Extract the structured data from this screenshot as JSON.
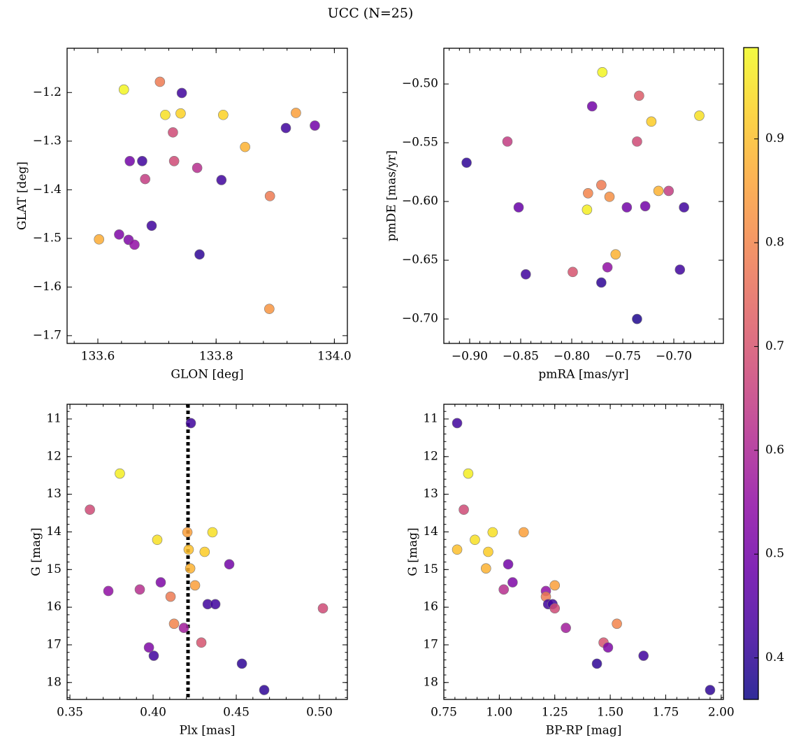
{
  "title": "UCC (N=25)",
  "colorbar": {
    "clim": [
      0.36,
      0.988
    ],
    "colormap": "plasma",
    "ticks": [
      0.4,
      0.5,
      0.6,
      0.7,
      0.8,
      0.9
    ]
  },
  "chart_data": [
    {
      "type": "scatter",
      "xlabel": "GLON [deg]",
      "ylabel": "GLAT [deg]",
      "xlim": [
        133.548,
        134.022
      ],
      "ylim": [
        -1.716,
        -1.109
      ],
      "xticks": [
        133.6,
        133.8,
        {
          "value": 134.0,
          "label": "134.0"
        }
      ],
      "yticks": [
        {
          "value": -1.2,
          "label": "−1.2"
        },
        {
          "value": -1.3,
          "label": "−1.3"
        },
        {
          "value": -1.4,
          "label": "−1.4"
        },
        {
          "value": -1.5,
          "label": "−1.5"
        },
        {
          "value": -1.6,
          "label": "−1.6"
        },
        {
          "value": -1.7,
          "label": "−1.7"
        }
      ],
      "x": [
        133.644,
        133.705,
        133.742,
        133.714,
        133.74,
        133.812,
        133.935,
        133.967,
        133.918,
        133.727,
        133.849,
        133.654,
        133.675,
        133.729,
        133.768,
        133.68,
        133.809,
        133.891,
        133.691,
        133.602,
        133.636,
        133.652,
        133.662,
        133.772,
        133.89
      ],
      "y": [
        -1.194,
        -1.178,
        -1.201,
        -1.246,
        -1.243,
        -1.246,
        -1.242,
        -1.268,
        -1.273,
        -1.282,
        -1.312,
        -1.341,
        -1.341,
        -1.341,
        -1.355,
        -1.378,
        -1.38,
        -1.413,
        -1.474,
        -1.502,
        -1.492,
        -1.503,
        -1.513,
        -1.533,
        -1.645
      ],
      "c": [
        0.98,
        0.78,
        0.42,
        0.95,
        0.93,
        0.93,
        0.85,
        0.5,
        0.42,
        0.68,
        0.88,
        0.5,
        0.42,
        0.68,
        0.62,
        0.65,
        0.42,
        0.78,
        0.42,
        0.87,
        0.52,
        0.52,
        0.55,
        0.4,
        0.83
      ]
    },
    {
      "type": "scatter",
      "xlabel": "pmRA [mas/yr]",
      "ylabel": "pmDE [mas/yr]",
      "xlim": [
        -0.9253,
        -0.6514
      ],
      "ylim": [
        -0.7208,
        -0.4696
      ],
      "xticks": [
        {
          "value": -0.9,
          "label": "−0.90"
        },
        {
          "value": -0.85,
          "label": "−0.85"
        },
        {
          "value": -0.8,
          "label": "−0.80"
        },
        {
          "value": -0.75,
          "label": "−0.75"
        },
        {
          "value": -0.7,
          "label": "−0.70"
        }
      ],
      "yticks": [
        {
          "value": -0.5,
          "label": "−0.50"
        },
        {
          "value": -0.55,
          "label": "−0.55"
        },
        {
          "value": -0.6,
          "label": "−0.60"
        },
        {
          "value": -0.65,
          "label": "−0.65"
        },
        {
          "value": -0.7,
          "label": "−0.70"
        }
      ],
      "x": [
        -0.77,
        -0.734,
        -0.78,
        -0.675,
        -0.722,
        -0.863,
        -0.736,
        -0.903,
        -0.771,
        -0.784,
        -0.763,
        -0.715,
        -0.705,
        -0.852,
        -0.785,
        -0.746,
        -0.728,
        -0.69,
        -0.757,
        -0.765,
        -0.845,
        -0.799,
        -0.694,
        -0.771,
        -0.736
      ],
      "y": [
        -0.49,
        -0.51,
        -0.519,
        -0.527,
        -0.532,
        -0.549,
        -0.549,
        -0.567,
        -0.586,
        -0.593,
        -0.596,
        -0.591,
        -0.591,
        -0.605,
        -0.607,
        -0.605,
        -0.604,
        -0.605,
        -0.645,
        -0.656,
        -0.662,
        -0.66,
        -0.658,
        -0.669,
        -0.7
      ],
      "c": [
        0.98,
        0.72,
        0.5,
        0.95,
        0.92,
        0.65,
        0.68,
        0.4,
        0.78,
        0.8,
        0.82,
        0.88,
        0.65,
        0.48,
        0.97,
        0.5,
        0.5,
        0.42,
        0.88,
        0.55,
        0.42,
        0.7,
        0.42,
        0.4,
        0.38
      ]
    },
    {
      "type": "scatter",
      "xlabel": "Plx [mas]",
      "ylabel": "G [mag]",
      "xlim": [
        0.3483,
        0.5168
      ],
      "ylim": [
        18.45,
        10.61
      ],
      "vline": 0.421,
      "xticks": [
        0.35,
        {
          "value": 0.4,
          "label": "0.40"
        },
        0.45,
        {
          "value": 0.5,
          "label": "0.50"
        }
      ],
      "yticks": [
        11,
        12,
        13,
        14,
        15,
        16,
        17,
        18
      ],
      "x": [
        0.4227,
        0.38,
        0.362,
        0.4025,
        0.4206,
        0.4357,
        0.4214,
        0.431,
        0.4458,
        0.4223,
        0.4046,
        0.4252,
        0.3731,
        0.392,
        0.4105,
        0.4328,
        0.4374,
        0.5021,
        0.4126,
        0.4185,
        0.429,
        0.3975,
        0.4004,
        0.4534,
        0.4668
      ],
      "y": [
        11.11,
        12.45,
        13.41,
        14.21,
        14.01,
        14.01,
        14.47,
        14.53,
        14.86,
        14.97,
        15.34,
        15.42,
        15.57,
        15.53,
        15.72,
        15.92,
        15.92,
        16.03,
        16.44,
        16.55,
        16.94,
        17.07,
        17.29,
        17.5,
        18.2
      ],
      "c": [
        0.42,
        0.97,
        0.68,
        0.95,
        0.85,
        0.95,
        0.9,
        0.92,
        0.5,
        0.88,
        0.52,
        0.85,
        0.55,
        0.62,
        0.78,
        0.42,
        0.42,
        0.68,
        0.8,
        0.58,
        0.7,
        0.52,
        0.42,
        0.4,
        0.4
      ]
    },
    {
      "type": "scatter",
      "xlabel": "BP-RP [mag]",
      "ylabel": "G [mag]",
      "xlim": [
        0.75,
        2.01
      ],
      "ylim": [
        18.45,
        10.61
      ],
      "xticks": [
        0.75,
        {
          "value": 1.0,
          "label": "1.00"
        },
        1.25,
        {
          "value": 1.5,
          "label": "1.50"
        },
        1.75,
        {
          "value": 2.0,
          "label": "2.00"
        }
      ],
      "yticks": [
        11,
        12,
        13,
        14,
        15,
        16,
        17,
        18
      ],
      "x": [
        0.81,
        0.86,
        0.84,
        0.89,
        0.81,
        0.97,
        1.11,
        0.95,
        1.04,
        0.94,
        1.06,
        1.25,
        1.02,
        1.21,
        1.21,
        1.22,
        1.24,
        1.25,
        1.53,
        1.3,
        1.47,
        1.49,
        1.65,
        1.44,
        1.95
      ],
      "y": [
        11.11,
        12.45,
        13.41,
        14.21,
        14.47,
        14.01,
        14.01,
        14.53,
        14.86,
        14.97,
        15.34,
        15.42,
        15.53,
        15.57,
        15.72,
        15.92,
        15.92,
        16.03,
        16.44,
        16.55,
        16.94,
        17.07,
        17.29,
        17.5,
        18.2
      ],
      "c": [
        0.42,
        0.97,
        0.68,
        0.95,
        0.9,
        0.95,
        0.85,
        0.92,
        0.5,
        0.88,
        0.52,
        0.85,
        0.62,
        0.55,
        0.78,
        0.42,
        0.42,
        0.68,
        0.8,
        0.58,
        0.7,
        0.52,
        0.42,
        0.4,
        0.4
      ]
    }
  ]
}
